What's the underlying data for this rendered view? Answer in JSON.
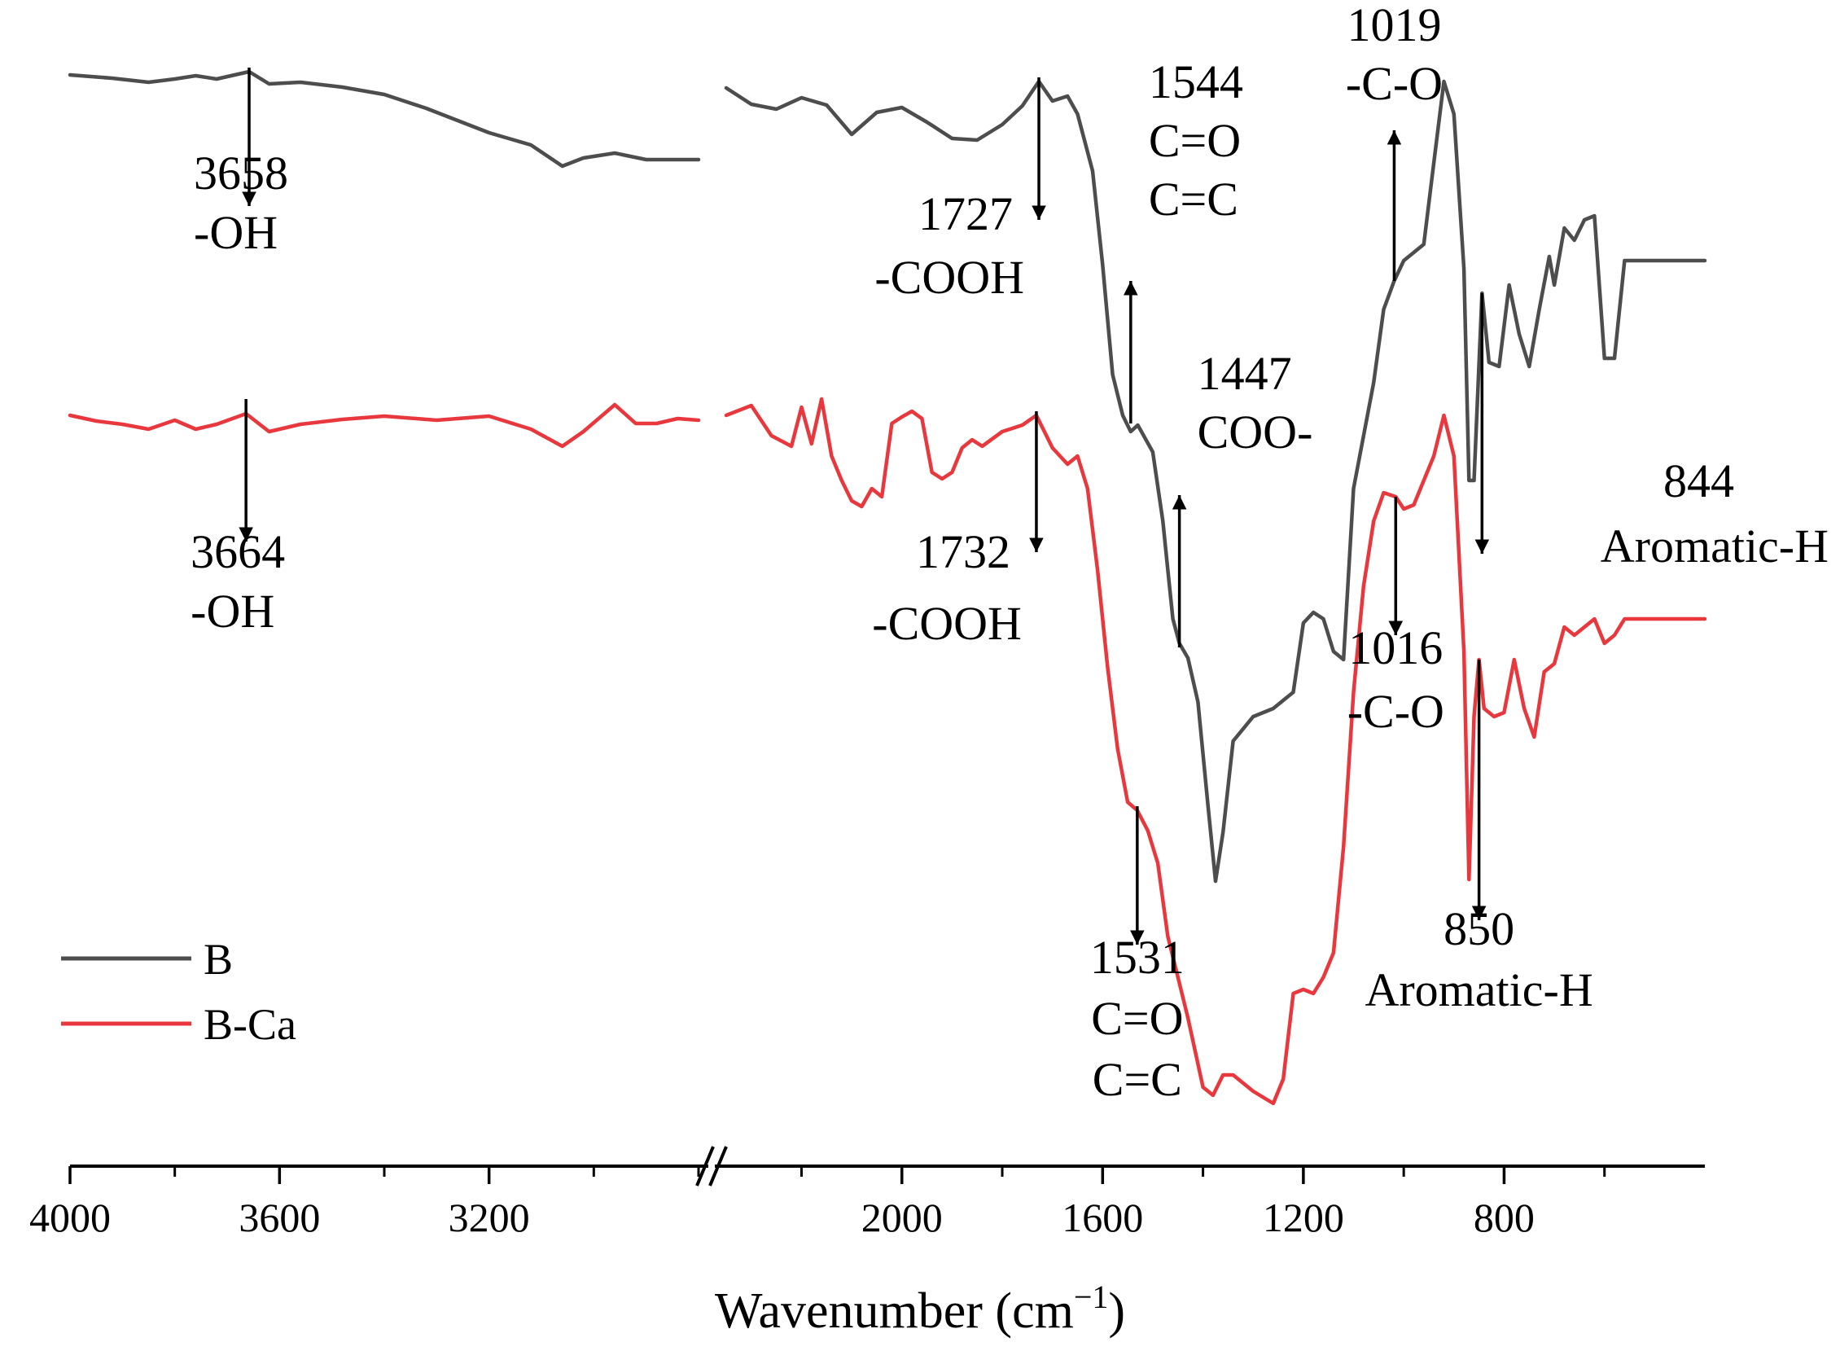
{
  "chart_data": {
    "type": "line",
    "title": "",
    "xlabel": "Wavenumber (cm",
    "xlabel_superscript": "−1",
    "xlabel_close": ")",
    "ylabel": "",
    "x_axis": {
      "reversed": true,
      "broken": true,
      "segment_1": [
        4000,
        2800
      ],
      "segment_2": [
        2350,
        400
      ],
      "ticks": [
        "4000",
        "3600",
        "3200",
        "2000",
        "1600",
        "1200",
        "800"
      ]
    },
    "grid": false,
    "legend_position": "bottom-left",
    "series": [
      {
        "name": "B",
        "color": "#4d4d4d",
        "points": [
          [
            4000,
            92
          ],
          [
            3920,
            96
          ],
          [
            3850,
            101
          ],
          [
            3800,
            97
          ],
          [
            3760,
            93
          ],
          [
            3720,
            97
          ],
          [
            3658,
            88
          ],
          [
            3620,
            103
          ],
          [
            3560,
            101
          ],
          [
            3480,
            107
          ],
          [
            3400,
            116
          ],
          [
            3320,
            133
          ],
          [
            3200,
            163
          ],
          [
            3120,
            178
          ],
          [
            3060,
            204
          ],
          [
            3020,
            194
          ],
          [
            2960,
            188
          ],
          [
            2900,
            196
          ],
          [
            2800,
            196
          ],
          [
            2350,
            108
          ],
          [
            2300,
            128
          ],
          [
            2250,
            134
          ],
          [
            2200,
            120
          ],
          [
            2150,
            129
          ],
          [
            2100,
            165
          ],
          [
            2050,
            138
          ],
          [
            2000,
            132
          ],
          [
            1950,
            150
          ],
          [
            1900,
            170
          ],
          [
            1850,
            172
          ],
          [
            1800,
            153
          ],
          [
            1760,
            130
          ],
          [
            1727,
            100
          ],
          [
            1700,
            124
          ],
          [
            1670,
            118
          ],
          [
            1650,
            140
          ],
          [
            1620,
            210
          ],
          [
            1600,
            325
          ],
          [
            1580,
            460
          ],
          [
            1560,
            510
          ],
          [
            1544,
            530
          ],
          [
            1530,
            522
          ],
          [
            1500,
            555
          ],
          [
            1480,
            640
          ],
          [
            1470,
            700
          ],
          [
            1460,
            760
          ],
          [
            1447,
            790
          ],
          [
            1430,
            808
          ],
          [
            1410,
            862
          ],
          [
            1390,
            990
          ],
          [
            1375,
            1082
          ],
          [
            1360,
            1022
          ],
          [
            1340,
            910
          ],
          [
            1300,
            880
          ],
          [
            1260,
            870
          ],
          [
            1240,
            860
          ],
          [
            1220,
            850
          ],
          [
            1200,
            765
          ],
          [
            1180,
            752
          ],
          [
            1160,
            760
          ],
          [
            1140,
            800
          ],
          [
            1120,
            810
          ],
          [
            1100,
            600
          ],
          [
            1060,
            470
          ],
          [
            1040,
            380
          ],
          [
            1019,
            345
          ],
          [
            1000,
            320
          ],
          [
            980,
            310
          ],
          [
            960,
            300
          ],
          [
            940,
            200
          ],
          [
            920,
            100
          ],
          [
            900,
            140
          ],
          [
            880,
            330
          ],
          [
            870,
            590
          ],
          [
            860,
            590
          ],
          [
            844,
            360
          ],
          [
            830,
            445
          ],
          [
            810,
            450
          ],
          [
            790,
            350
          ],
          [
            770,
            410
          ],
          [
            750,
            450
          ],
          [
            730,
            380
          ],
          [
            710,
            315
          ],
          [
            700,
            350
          ],
          [
            680,
            280
          ],
          [
            660,
            295
          ],
          [
            640,
            270
          ],
          [
            620,
            265
          ],
          [
            600,
            440
          ],
          [
            580,
            440
          ],
          [
            560,
            320
          ],
          [
            400,
            320
          ]
        ]
      },
      {
        "name": "B-Ca",
        "color": "#e8383d",
        "points": [
          [
            4000,
            510
          ],
          [
            3950,
            517
          ],
          [
            3900,
            521
          ],
          [
            3850,
            527
          ],
          [
            3800,
            516
          ],
          [
            3760,
            527
          ],
          [
            3720,
            521
          ],
          [
            3664,
            508
          ],
          [
            3620,
            530
          ],
          [
            3560,
            521
          ],
          [
            3480,
            515
          ],
          [
            3400,
            511
          ],
          [
            3300,
            516
          ],
          [
            3200,
            511
          ],
          [
            3120,
            527
          ],
          [
            3060,
            548
          ],
          [
            3020,
            530
          ],
          [
            2960,
            497
          ],
          [
            2920,
            520
          ],
          [
            2880,
            520
          ],
          [
            2840,
            514
          ],
          [
            2800,
            516
          ],
          [
            2350,
            510
          ],
          [
            2300,
            498
          ],
          [
            2260,
            535
          ],
          [
            2220,
            548
          ],
          [
            2200,
            500
          ],
          [
            2180,
            545
          ],
          [
            2160,
            490
          ],
          [
            2140,
            560
          ],
          [
            2120,
            590
          ],
          [
            2100,
            615
          ],
          [
            2080,
            622
          ],
          [
            2060,
            600
          ],
          [
            2040,
            610
          ],
          [
            2020,
            520
          ],
          [
            2000,
            512
          ],
          [
            1980,
            505
          ],
          [
            1960,
            514
          ],
          [
            1940,
            580
          ],
          [
            1920,
            588
          ],
          [
            1900,
            580
          ],
          [
            1880,
            550
          ],
          [
            1860,
            540
          ],
          [
            1840,
            548
          ],
          [
            1800,
            530
          ],
          [
            1760,
            522
          ],
          [
            1732,
            510
          ],
          [
            1700,
            550
          ],
          [
            1670,
            570
          ],
          [
            1650,
            560
          ],
          [
            1630,
            600
          ],
          [
            1610,
            700
          ],
          [
            1590,
            820
          ],
          [
            1570,
            920
          ],
          [
            1550,
            985
          ],
          [
            1531,
            995
          ],
          [
            1510,
            1020
          ],
          [
            1490,
            1060
          ],
          [
            1470,
            1150
          ],
          [
            1450,
            1200
          ],
          [
            1430,
            1250
          ],
          [
            1400,
            1335
          ],
          [
            1380,
            1345
          ],
          [
            1360,
            1320
          ],
          [
            1340,
            1320
          ],
          [
            1320,
            1330
          ],
          [
            1300,
            1340
          ],
          [
            1260,
            1355
          ],
          [
            1240,
            1325
          ],
          [
            1220,
            1220
          ],
          [
            1200,
            1215
          ],
          [
            1180,
            1220
          ],
          [
            1160,
            1200
          ],
          [
            1140,
            1170
          ],
          [
            1120,
            1040
          ],
          [
            1100,
            850
          ],
          [
            1080,
            720
          ],
          [
            1060,
            640
          ],
          [
            1040,
            605
          ],
          [
            1016,
            610
          ],
          [
            1000,
            625
          ],
          [
            980,
            620
          ],
          [
            960,
            590
          ],
          [
            940,
            560
          ],
          [
            920,
            510
          ],
          [
            900,
            560
          ],
          [
            880,
            800
          ],
          [
            870,
            1080
          ],
          [
            860,
            880
          ],
          [
            850,
            810
          ],
          [
            840,
            870
          ],
          [
            820,
            880
          ],
          [
            800,
            875
          ],
          [
            780,
            810
          ],
          [
            760,
            870
          ],
          [
            740,
            905
          ],
          [
            720,
            825
          ],
          [
            700,
            815
          ],
          [
            680,
            770
          ],
          [
            660,
            780
          ],
          [
            640,
            770
          ],
          [
            620,
            760
          ],
          [
            600,
            790
          ],
          [
            580,
            780
          ],
          [
            560,
            760
          ],
          [
            400,
            760
          ]
        ]
      }
    ],
    "annotations": [
      {
        "series": "B",
        "wavenumber": 3658,
        "direction": "down",
        "arrow_from": 83,
        "arrow_to": 253,
        "labels": [
          "3658",
          "-OH"
        ],
        "label_at": [
          232,
          305
        ],
        "anchor": "start"
      },
      {
        "series": "B",
        "wavenumber": 1727,
        "direction": "down",
        "arrow_from": 95,
        "arrow_to": 270,
        "labels": [
          "1727",
          "-COOH"
        ],
        "label_at": [
          282,
          360
        ],
        "anchor": "end"
      },
      {
        "series": "B",
        "wavenumber": 1544,
        "direction": "up",
        "arrow_from": 520,
        "arrow_to": 345,
        "labels": [
          "1544",
          "C=O",
          "C=C"
        ],
        "label_at": [
          120,
          192,
          264
        ],
        "anchor": "start"
      },
      {
        "series": "B",
        "wavenumber": 1447,
        "direction": "up",
        "arrow_from": 795,
        "arrow_to": 608,
        "labels": [
          "1447",
          "COO-"
        ],
        "label_at": [
          478,
          550
        ],
        "anchor": "start"
      },
      {
        "series": "B",
        "wavenumber": 1019,
        "direction": "up",
        "arrow_from": 345,
        "arrow_to": 160,
        "labels": [
          "1019",
          "-C-O"
        ],
        "label_at": [
          50,
          122
        ],
        "anchor": "middle"
      },
      {
        "series": "B",
        "wavenumber": 844,
        "direction": "down",
        "arrow_from": 360,
        "arrow_to": 680,
        "labels": [
          "844",
          "Aromatic-H"
        ],
        "label_at": [
          610,
          690
        ],
        "anchor": "end"
      },
      {
        "series": "B-Ca",
        "wavenumber": 3664,
        "direction": "down",
        "arrow_from": 490,
        "arrow_to": 665,
        "labels": [
          "3664",
          "-OH"
        ],
        "label_at": [
          697,
          770
        ],
        "anchor": "start"
      },
      {
        "series": "B-Ca",
        "wavenumber": 1732,
        "direction": "down",
        "arrow_from": 505,
        "arrow_to": 678,
        "labels": [
          "1732",
          "-COOH"
        ],
        "label_at": [
          697,
          785
        ],
        "anchor": "end"
      },
      {
        "series": "B-Ca",
        "wavenumber": 1531,
        "direction": "down",
        "arrow_from": 990,
        "arrow_to": 1160,
        "labels": [
          "1531",
          "C=O",
          "C=C"
        ],
        "label_at": [
          1195,
          1270,
          1345
        ],
        "anchor": "middle"
      },
      {
        "series": "B-Ca",
        "wavenumber": 1016,
        "direction": "down",
        "arrow_from": 610,
        "arrow_to": 780,
        "labels": [
          "1016",
          "-C-O"
        ],
        "label_at": [
          815,
          893
        ],
        "anchor": "middle"
      },
      {
        "series": "B-Ca",
        "wavenumber": 850,
        "direction": "down",
        "arrow_from": 810,
        "arrow_to": 1130,
        "labels": [
          "850",
          "Aromatic-H"
        ],
        "label_at": [
          1160,
          1235
        ],
        "anchor": "middle"
      }
    ]
  }
}
